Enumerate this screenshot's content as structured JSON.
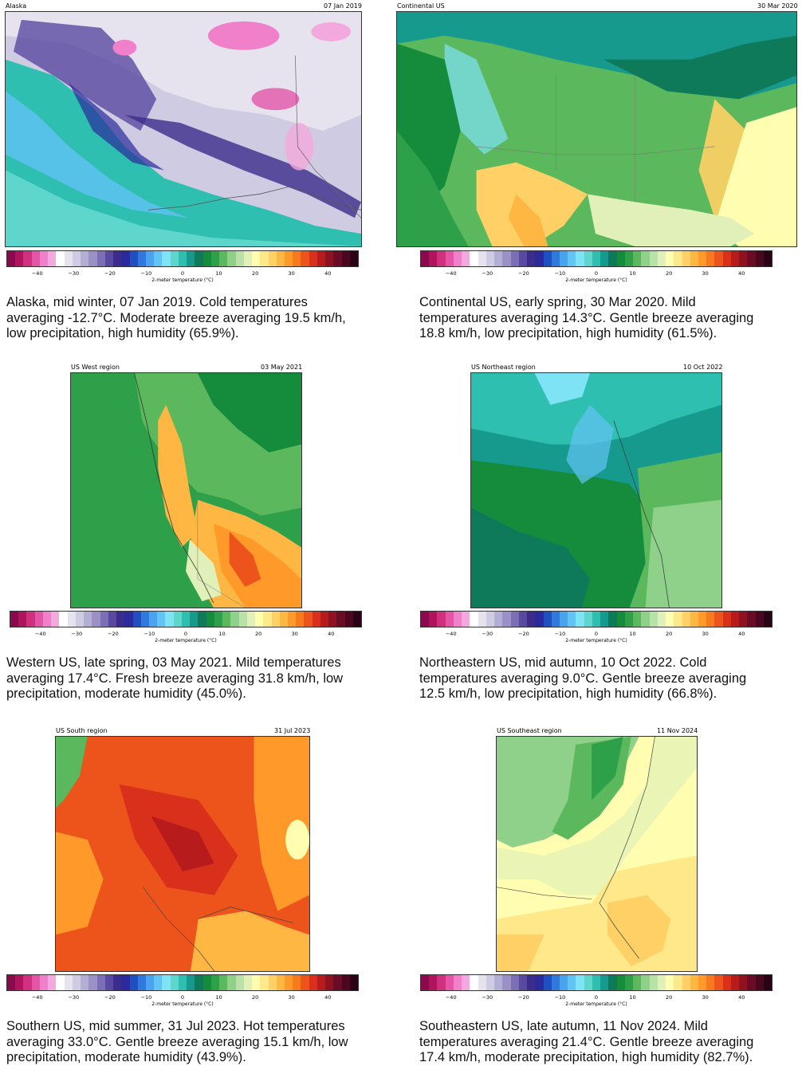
{
  "colorbar": {
    "colors": [
      "#8b0a4f",
      "#b0145e",
      "#d0307e",
      "#e455a8",
      "#f080c9",
      "#f3a9de",
      "#ffffff",
      "#e6e3ef",
      "#cfcbe2",
      "#b3aed3",
      "#9c91c7",
      "#7d6fb6",
      "#5a49a1",
      "#3c2c8c",
      "#2a2a9c",
      "#1f4fc0",
      "#2f79dc",
      "#4aa3ef",
      "#62c3f5",
      "#7fe3f6",
      "#5fd6cb",
      "#2fbfb0",
      "#179a8e",
      "#0f7a5a",
      "#148c3c",
      "#2fa04a",
      "#5cb85c",
      "#8fd08a",
      "#b9e2a8",
      "#e0f0b8",
      "#fffdb0",
      "#ffe88a",
      "#ffd065",
      "#ffb743",
      "#ff9a2a",
      "#f87a1f",
      "#ed541c",
      "#d8301a",
      "#b81b1c",
      "#8e1220",
      "#6a0c25",
      "#4b0720",
      "#2a0416"
    ],
    "ticks": [
      "-40",
      "-30",
      "-20",
      "-10",
      "0",
      "10",
      "20",
      "30",
      "40"
    ],
    "label": "2-meter temperature (°C)"
  },
  "panels": [
    {
      "region": "Alaska",
      "date": "07 Jan 2019",
      "caption": [
        "Alaska, mid winter, 07 Jan 2019. Cold temperatures",
        "averaging -12.7°C. Moderate breeze averaging 19.5 km/h,",
        "low precipitation, high humidity (65.9%)."
      ]
    },
    {
      "region": "Continental US",
      "date": "30 Mar 2020",
      "caption": [
        "Continental US, early spring, 30 Mar 2020. Mild",
        "temperatures averaging 14.3°C. Gentle breeze averaging",
        "18.8 km/h, low precipitation, high humidity (61.5%)."
      ]
    },
    {
      "region": "US West region",
      "date": "03 May 2021",
      "caption": [
        "Western US, late spring, 03 May 2021. Mild temperatures",
        "averaging 17.4°C. Fresh breeze averaging 31.8 km/h, low",
        "precipitation, moderate humidity (45.0%)."
      ]
    },
    {
      "region": "US Northeast region",
      "date": "10 Oct 2022",
      "caption": [
        "Northeastern US, mid autumn, 10 Oct 2022. Cold",
        "temperatures averaging 9.0°C. Gentle breeze averaging",
        "12.5 km/h, low precipitation, high humidity (66.8%)."
      ]
    },
    {
      "region": "US South region",
      "date": "31 Jul 2023",
      "caption": [
        "Southern US, mid summer, 31 Jul 2023. Hot temperatures",
        "averaging 33.0°C. Gentle breeze averaging 15.1 km/h, low",
        "precipitation, moderate humidity (43.9%)."
      ]
    },
    {
      "region": "US Southeast region",
      "date": "11 Nov 2024",
      "caption": [
        "Southeastern US, late autumn, 11 Nov 2024. Mild",
        "temperatures averaging 21.4°C. Gentle breeze averaging",
        "17.4 km/h, moderate precipitation, high humidity (82.7%)."
      ]
    }
  ]
}
